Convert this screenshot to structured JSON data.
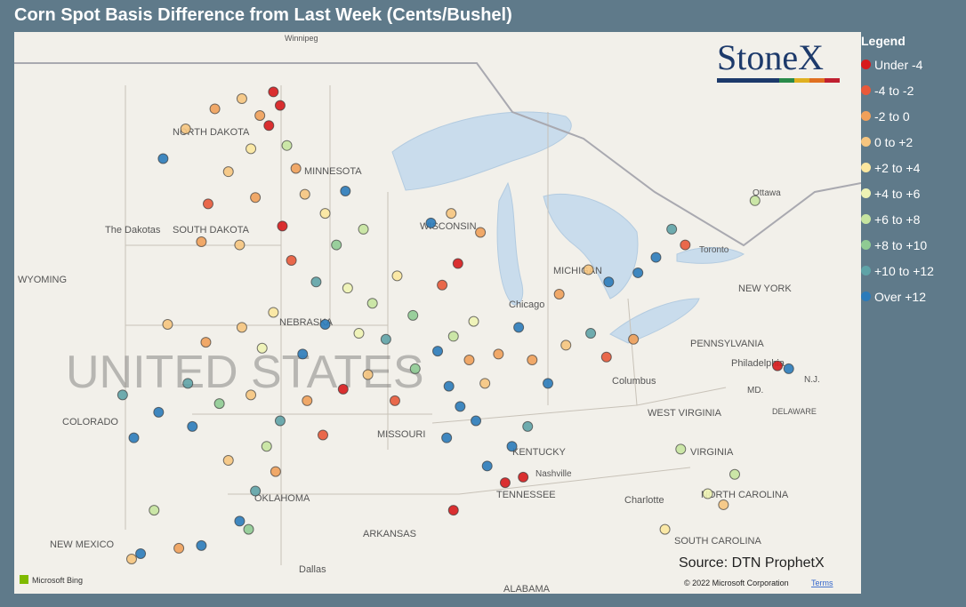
{
  "header": {
    "title": "Corn Spot Basis Difference from Last Week (Cents/Bushel)"
  },
  "legend": {
    "title": "Legend",
    "items": [
      {
        "label": "Under -4",
        "color": "#d7191c"
      },
      {
        "label": "-4 to -2",
        "color": "#e8593a"
      },
      {
        "label": "-2 to 0",
        "color": "#f0a05a"
      },
      {
        "label": "0 to +2",
        "color": "#f6c57f"
      },
      {
        "label": "+2 to +4",
        "color": "#fbe79f"
      },
      {
        "label": "+4 to +6",
        "color": "#eef3b4"
      },
      {
        "label": "+6 to +8",
        "color": "#c6e4a0"
      },
      {
        "label": "+8 to +10",
        "color": "#8fcb93"
      },
      {
        "label": "+10 to +12",
        "color": "#5fa3a7"
      },
      {
        "label": "Over +12",
        "color": "#2b7bba"
      }
    ]
  },
  "logo": "StoneX",
  "source": "Source: DTN ProphetX",
  "attribution": {
    "bing": "Microsoft Bing",
    "copyright": "© 2022 Microsoft Corporation",
    "terms": "Terms"
  },
  "map_labels": [
    "Winnipeg",
    "NORTH DAKOTA",
    "MINNESOTA",
    "The Dakotas",
    "SOUTH DAKOTA",
    "WYOMING",
    "NEBRASKA",
    "UNITED STATES",
    "COLORADO",
    "MISSOURI",
    "OKLAHOMA",
    "NEW MEXICO",
    "ARKANSAS",
    "Dallas",
    "ALABAMA",
    "TENNESSEE",
    "Nashville",
    "KENTUCKY",
    "WEST VIRGINIA",
    "VIRGINIA",
    "Charlotte",
    "NORTH CAROLINA",
    "SOUTH CAROLINA",
    "Columbus",
    "Chicago",
    "Philadelphia",
    "PENNSYLVANIA",
    "NEW YORK",
    "Toronto",
    "Ottawa",
    "WISCONSIN",
    "MICHIGAN",
    "DELAWARE",
    "MD.",
    "N.J."
  ],
  "points": [
    {
      "lon": -97.6,
      "lat": 48.6,
      "class": 0
    },
    {
      "lon": -97.3,
      "lat": 48.2,
      "class": 0
    },
    {
      "lon": -97.8,
      "lat": 47.6,
      "class": 0
    },
    {
      "lon": -98.2,
      "lat": 47.9,
      "class": 2
    },
    {
      "lon": -99.0,
      "lat": 48.4,
      "class": 3
    },
    {
      "lon": -100.2,
      "lat": 48.1,
      "class": 2
    },
    {
      "lon": -101.5,
      "lat": 47.5,
      "class": 3
    },
    {
      "lon": -102.5,
      "lat": 46.6,
      "class": 9
    },
    {
      "lon": -98.6,
      "lat": 46.9,
      "class": 4
    },
    {
      "lon": -97.0,
      "lat": 47.0,
      "class": 6
    },
    {
      "lon": -96.6,
      "lat": 46.3,
      "class": 2
    },
    {
      "lon": -99.6,
      "lat": 46.2,
      "class": 3
    },
    {
      "lon": -100.5,
      "lat": 45.2,
      "class": 1
    },
    {
      "lon": -98.4,
      "lat": 45.4,
      "class": 2
    },
    {
      "lon": -97.2,
      "lat": 44.5,
      "class": 0
    },
    {
      "lon": -96.2,
      "lat": 45.5,
      "class": 3
    },
    {
      "lon": -95.3,
      "lat": 44.9,
      "class": 4
    },
    {
      "lon": -94.4,
      "lat": 45.6,
      "class": 9
    },
    {
      "lon": -93.6,
      "lat": 44.4,
      "class": 6
    },
    {
      "lon": -94.8,
      "lat": 43.9,
      "class": 7
    },
    {
      "lon": -96.8,
      "lat": 43.4,
      "class": 1
    },
    {
      "lon": -99.1,
      "lat": 43.9,
      "class": 3
    },
    {
      "lon": -100.8,
      "lat": 44.0,
      "class": 2
    },
    {
      "lon": -95.7,
      "lat": 42.7,
      "class": 8
    },
    {
      "lon": -94.3,
      "lat": 42.5,
      "class": 5
    },
    {
      "lon": -93.2,
      "lat": 42.0,
      "class": 6
    },
    {
      "lon": -92.1,
      "lat": 42.9,
      "class": 4
    },
    {
      "lon": -91.4,
      "lat": 41.6,
      "class": 7
    },
    {
      "lon": -95.3,
      "lat": 41.3,
      "class": 9
    },
    {
      "lon": -93.8,
      "lat": 41.0,
      "class": 5
    },
    {
      "lon": -92.6,
      "lat": 40.8,
      "class": 8
    },
    {
      "lon": -90.6,
      "lat": 44.6,
      "class": 9
    },
    {
      "lon": -89.4,
      "lat": 43.3,
      "class": 0
    },
    {
      "lon": -88.4,
      "lat": 44.3,
      "class": 2
    },
    {
      "lon": -89.7,
      "lat": 44.9,
      "class": 3
    },
    {
      "lon": -90.1,
      "lat": 42.6,
      "class": 1
    },
    {
      "lon": -99.0,
      "lat": 41.2,
      "class": 3
    },
    {
      "lon": -97.6,
      "lat": 41.7,
      "class": 4
    },
    {
      "lon": -98.1,
      "lat": 40.5,
      "class": 5
    },
    {
      "lon": -100.6,
      "lat": 40.7,
      "class": 2
    },
    {
      "lon": -102.3,
      "lat": 41.3,
      "class": 3
    },
    {
      "lon": -96.3,
      "lat": 40.3,
      "class": 9
    },
    {
      "lon": -101.4,
      "lat": 39.3,
      "class": 8
    },
    {
      "lon": -102.7,
      "lat": 38.3,
      "class": 9
    },
    {
      "lon": -101.2,
      "lat": 37.8,
      "class": 9
    },
    {
      "lon": -100.0,
      "lat": 38.6,
      "class": 7
    },
    {
      "lon": -98.6,
      "lat": 38.9,
      "class": 3
    },
    {
      "lon": -97.3,
      "lat": 38.0,
      "class": 8
    },
    {
      "lon": -96.1,
      "lat": 38.7,
      "class": 2
    },
    {
      "lon": -95.4,
      "lat": 37.5,
      "class": 1
    },
    {
      "lon": -97.9,
      "lat": 37.1,
      "class": 6
    },
    {
      "lon": -99.6,
      "lat": 36.6,
      "class": 3
    },
    {
      "lon": -97.5,
      "lat": 36.2,
      "class": 2
    },
    {
      "lon": -98.4,
      "lat": 35.5,
      "class": 8
    },
    {
      "lon": -99.1,
      "lat": 34.4,
      "class": 9
    },
    {
      "lon": -98.7,
      "lat": 34.1,
      "class": 7
    },
    {
      "lon": -104.3,
      "lat": 38.9,
      "class": 8
    },
    {
      "lon": -103.8,
      "lat": 37.4,
      "class": 9
    },
    {
      "lon": -102.9,
      "lat": 34.8,
      "class": 6
    },
    {
      "lon": -101.8,
      "lat": 33.4,
      "class": 2
    },
    {
      "lon": -100.8,
      "lat": 33.5,
      "class": 9
    },
    {
      "lon": -94.5,
      "lat": 39.1,
      "class": 0
    },
    {
      "lon": -93.4,
      "lat": 39.6,
      "class": 3
    },
    {
      "lon": -92.2,
      "lat": 38.7,
      "class": 1
    },
    {
      "lon": -91.3,
      "lat": 39.8,
      "class": 7
    },
    {
      "lon": -90.3,
      "lat": 40.4,
      "class": 9
    },
    {
      "lon": -89.6,
      "lat": 40.9,
      "class": 6
    },
    {
      "lon": -88.7,
      "lat": 41.4,
      "class": 5
    },
    {
      "lon": -88.9,
      "lat": 40.1,
      "class": 2
    },
    {
      "lon": -89.8,
      "lat": 39.2,
      "class": 9
    },
    {
      "lon": -89.3,
      "lat": 38.5,
      "class": 9
    },
    {
      "lon": -88.6,
      "lat": 38.0,
      "class": 9
    },
    {
      "lon": -89.9,
      "lat": 37.4,
      "class": 9
    },
    {
      "lon": -88.2,
      "lat": 39.3,
      "class": 3
    },
    {
      "lon": -87.6,
      "lat": 40.3,
      "class": 2
    },
    {
      "lon": -86.7,
      "lat": 41.2,
      "class": 9
    },
    {
      "lon": -86.1,
      "lat": 40.1,
      "class": 2
    },
    {
      "lon": -85.4,
      "lat": 39.3,
      "class": 9
    },
    {
      "lon": -84.6,
      "lat": 40.6,
      "class": 3
    },
    {
      "lon": -83.5,
      "lat": 41.0,
      "class": 8
    },
    {
      "lon": -82.8,
      "lat": 40.2,
      "class": 1
    },
    {
      "lon": -81.6,
      "lat": 40.8,
      "class": 2
    },
    {
      "lon": -84.9,
      "lat": 42.3,
      "class": 2
    },
    {
      "lon": -83.6,
      "lat": 43.1,
      "class": 3
    },
    {
      "lon": -82.7,
      "lat": 42.7,
      "class": 9
    },
    {
      "lon": -81.4,
      "lat": 43.0,
      "class": 9
    },
    {
      "lon": -80.6,
      "lat": 43.5,
      "class": 9
    },
    {
      "lon": -79.9,
      "lat": 44.4,
      "class": 8
    },
    {
      "lon": -79.3,
      "lat": 43.9,
      "class": 1
    },
    {
      "lon": -76.2,
      "lat": 45.3,
      "class": 6
    },
    {
      "lon": -75.2,
      "lat": 39.9,
      "class": 0
    },
    {
      "lon": -74.7,
      "lat": 39.8,
      "class": 9
    },
    {
      "lon": -86.5,
      "lat": 36.0,
      "class": 0
    },
    {
      "lon": -87.3,
      "lat": 35.8,
      "class": 0
    },
    {
      "lon": -88.1,
      "lat": 36.4,
      "class": 9
    },
    {
      "lon": -89.6,
      "lat": 34.8,
      "class": 0
    },
    {
      "lon": -87.0,
      "lat": 37.1,
      "class": 9
    },
    {
      "lon": -86.3,
      "lat": 37.8,
      "class": 8
    },
    {
      "lon": -78.3,
      "lat": 35.4,
      "class": 5
    },
    {
      "lon": -77.6,
      "lat": 35.0,
      "class": 3
    },
    {
      "lon": -77.1,
      "lat": 36.1,
      "class": 6
    },
    {
      "lon": -80.2,
      "lat": 34.1,
      "class": 4
    },
    {
      "lon": -79.5,
      "lat": 37.0,
      "class": 6
    },
    {
      "lon": -103.5,
      "lat": 33.2,
      "class": 9
    },
    {
      "lon": -103.9,
      "lat": 33.0,
      "class": 3
    }
  ]
}
